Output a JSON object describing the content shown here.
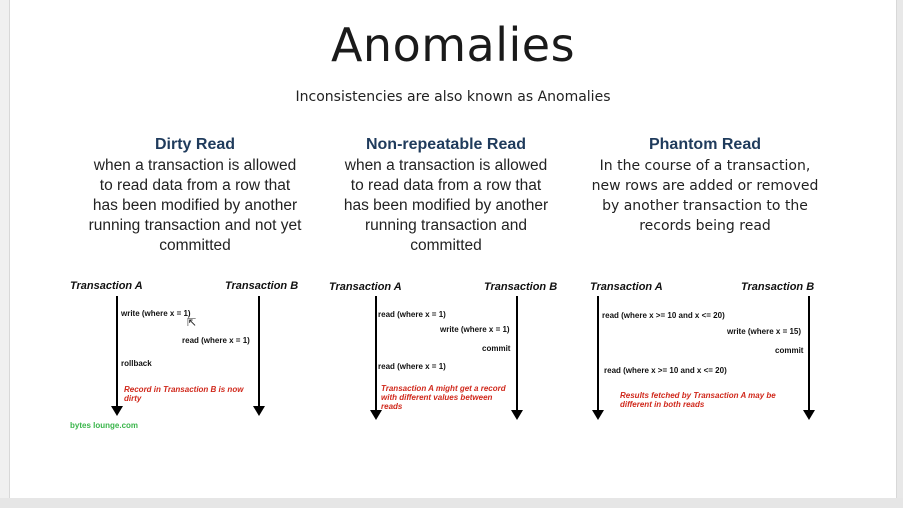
{
  "slide": {
    "title": "Anomalies",
    "subtitle": "Inconsistencies are also known as Anomalies"
  },
  "columns": [
    {
      "heading": "Dirty Read",
      "desc": [
        "when a transaction is allowed",
        "to read data from a row that",
        "has been modified by another",
        "running transaction and not yet",
        "committed"
      ],
      "tx_a": "Transaction A",
      "tx_b": "Transaction B",
      "steps": [
        "write (where x = 1)",
        "read (where x = 1)",
        "rollback"
      ],
      "note": "Record in Transaction B is now dirty",
      "credit": "bytes lounge.com"
    },
    {
      "heading": "Non-repeatable Read",
      "desc": [
        "when a transaction is allowed",
        "to read data from a row that",
        "has been modified by another",
        "running transaction and",
        "committed"
      ],
      "tx_a": "Transaction A",
      "tx_b": "Transaction B",
      "steps": [
        "read (where x = 1)",
        "write (where x = 1)",
        "commit",
        "read (where x = 1)"
      ],
      "note": "Transaction A might get a record with different values between reads"
    },
    {
      "heading": "Phantom Read",
      "desc": [
        "In the course of a transaction,",
        "new rows are added or removed",
        "by another transaction to the",
        "records being read"
      ],
      "tx_a": "Transaction A",
      "tx_b": "Transaction B",
      "steps": [
        "read (where x >= 10 and x <= 20)",
        "write (where x = 15)",
        "commit",
        "read (where x >= 10 and x <= 20)"
      ],
      "note": "Results fetched by Transaction A may be different in both reads"
    }
  ]
}
